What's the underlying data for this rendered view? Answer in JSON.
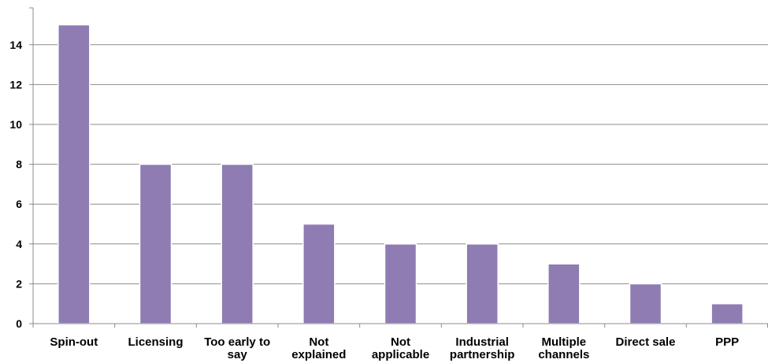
{
  "chart_data": {
    "type": "bar",
    "categories": [
      [
        "Spin-out"
      ],
      [
        "Licensing"
      ],
      [
        "Too early to",
        "say"
      ],
      [
        "Not",
        "explained"
      ],
      [
        "Not",
        "applicable"
      ],
      [
        "Industrial",
        "partnership"
      ],
      [
        "Multiple",
        "channels"
      ],
      [
        "Direct sale"
      ],
      [
        "PPP"
      ]
    ],
    "values": [
      15,
      8,
      8,
      5,
      4,
      4,
      3,
      2,
      1
    ],
    "yticks": [
      "0",
      "2",
      "4",
      "6",
      "8",
      "10",
      "12",
      "14"
    ],
    "ylim": [
      0,
      16
    ],
    "grid": true,
    "title": "",
    "xlabel": "",
    "ylabel": "",
    "bar_color": "#8e7cb3",
    "bar_edge_color": "#ffffff",
    "grid_color": "#8c8c8c"
  }
}
